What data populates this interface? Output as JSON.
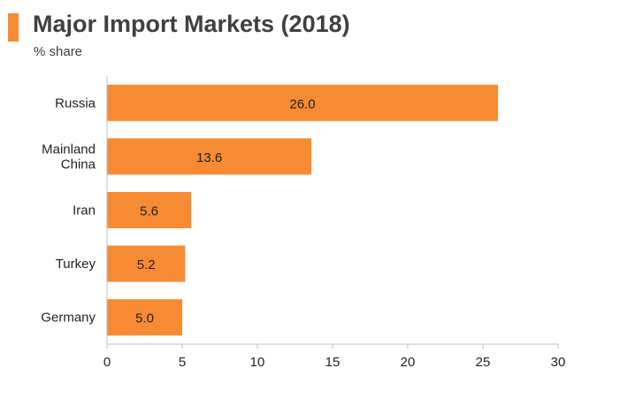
{
  "header": {
    "accent_color": "#f68b33"
  },
  "chart_data": {
    "type": "bar",
    "orientation": "horizontal",
    "title": "Major Import Markets (2018)",
    "subtitle": "% share",
    "categories": [
      [
        "Russia"
      ],
      [
        "Mainland",
        "China"
      ],
      [
        "Iran"
      ],
      [
        "Turkey"
      ],
      [
        "Germany"
      ]
    ],
    "values": [
      26.0,
      13.6,
      5.6,
      5.2,
      5.0
    ],
    "data_labels": [
      "26.0",
      "13.6",
      "5.6",
      "5.2",
      "5.0"
    ],
    "xlim": [
      0,
      30
    ],
    "x_ticks": [
      0,
      5,
      10,
      15,
      20,
      25,
      30
    ],
    "grid": false,
    "legend": "none",
    "bar_color": "#f68b33"
  }
}
